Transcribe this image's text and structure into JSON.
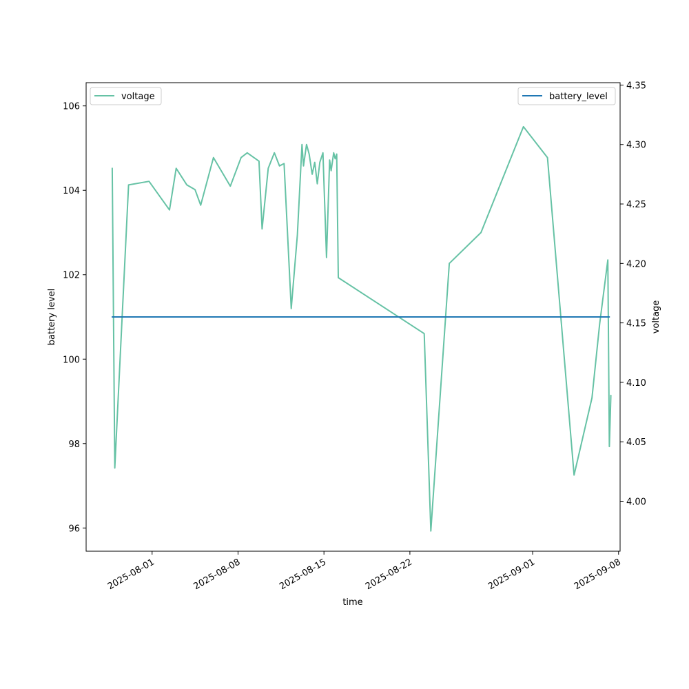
{
  "chart_data": {
    "type": "line",
    "xlabel": "time",
    "ylabel_left": "battery level",
    "ylabel_right": "voltage",
    "x_ticks": [
      "2025-08-01",
      "2025-08-08",
      "2025-08-15",
      "2025-08-22",
      "2025-09-01",
      "2025-09-08"
    ],
    "y_left_ticks": [
      "96",
      "98",
      "100",
      "102",
      "104",
      "106"
    ],
    "y_right_ticks": [
      "4.00",
      "4.05",
      "4.10",
      "4.15",
      "4.20",
      "4.25",
      "4.30",
      "4.35"
    ],
    "xlim": [
      "2025-07-26T15:00",
      "2025-09-08T03:00"
    ],
    "ylim_left": [
      95.45,
      106.55
    ],
    "ylim_right": [
      3.958,
      4.352
    ],
    "legend_left": {
      "position": "upper left",
      "label": "voltage"
    },
    "legend_right": {
      "position": "upper right",
      "label": "battery_level"
    },
    "colors": {
      "voltage": "#66c2a5",
      "battery_level": "#1f77b4"
    },
    "series": [
      {
        "name": "battery_level",
        "axis": "left",
        "x": [
          "2025-07-28T18:00",
          "2025-09-07T06:00"
        ],
        "y": [
          101,
          101
        ]
      },
      {
        "name": "voltage",
        "axis": "right",
        "x": [
          "2025-07-28T18:00",
          "2025-07-28T23:00",
          "2025-07-30T02:00",
          "2025-07-31T18:00",
          "2025-08-02T10:00",
          "2025-08-02T23:00",
          "2025-08-03T20:00",
          "2025-08-04T12:00",
          "2025-08-04T23:00",
          "2025-08-06T00:00",
          "2025-08-07T09:00",
          "2025-08-08T06:00",
          "2025-08-08T18:00",
          "2025-08-09T17:00",
          "2025-08-09T23:00",
          "2025-08-10T11:00",
          "2025-08-10T23:00",
          "2025-08-11T09:00",
          "2025-08-11T18:00",
          "2025-08-12T08:00",
          "2025-08-12T20:00",
          "2025-08-13T05:00",
          "2025-08-13T08:00",
          "2025-08-13T14:00",
          "2025-08-13T19:00",
          "2025-08-14T01:00",
          "2025-08-14T06:00",
          "2025-08-14T11:00",
          "2025-08-14T16:00",
          "2025-08-14T22:00",
          "2025-08-15T05:00",
          "2025-08-15T11:00",
          "2025-08-15T14:00",
          "2025-08-15T19:00",
          "2025-08-15T22:00",
          "2025-08-16T01:00",
          "2025-08-16T04:00",
          "2025-08-23T04:00",
          "2025-08-23T17:00",
          "2025-08-25T05:00",
          "2025-08-27T19:00",
          "2025-08-31T06:00",
          "2025-09-02T05:00",
          "2025-09-04T09:00",
          "2025-09-05T20:00",
          "2025-09-06T11:00",
          "2025-09-07T03:00",
          "2025-09-07T06:00",
          "2025-09-07T09:00"
        ],
        "y": [
          4.28,
          4.028,
          4.266,
          4.269,
          4.245,
          4.28,
          4.266,
          4.262,
          4.249,
          4.289,
          4.265,
          4.289,
          4.293,
          4.286,
          4.229,
          4.28,
          4.293,
          4.282,
          4.284,
          4.162,
          4.224,
          4.3,
          4.282,
          4.3,
          4.292,
          4.275,
          4.285,
          4.267,
          4.285,
          4.293,
          4.205,
          4.287,
          4.278,
          4.293,
          4.288,
          4.292,
          4.188,
          4.141,
          3.975,
          4.2,
          4.226,
          4.315,
          4.289,
          4.022,
          4.087,
          4.149,
          4.203,
          4.046,
          4.089
        ]
      }
    ]
  }
}
